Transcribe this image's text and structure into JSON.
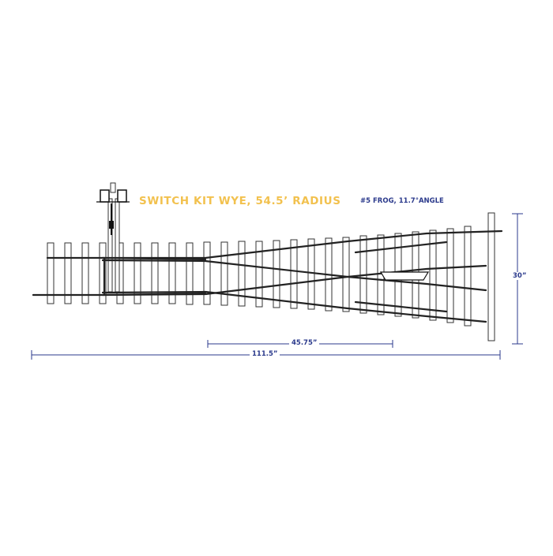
{
  "title": "SWITCH KIT WYE, 54.5’ RADIUS",
  "spec_label": "#5 FROG, 11.7°ANGLE",
  "dimensions": {
    "height": "30”",
    "frog_length": "45.75”",
    "total_length": "111.5”"
  },
  "colors": {
    "title": "#f2c14e",
    "dimension": "#2b3a8c",
    "ties": "#333333",
    "rails": "#222222"
  }
}
